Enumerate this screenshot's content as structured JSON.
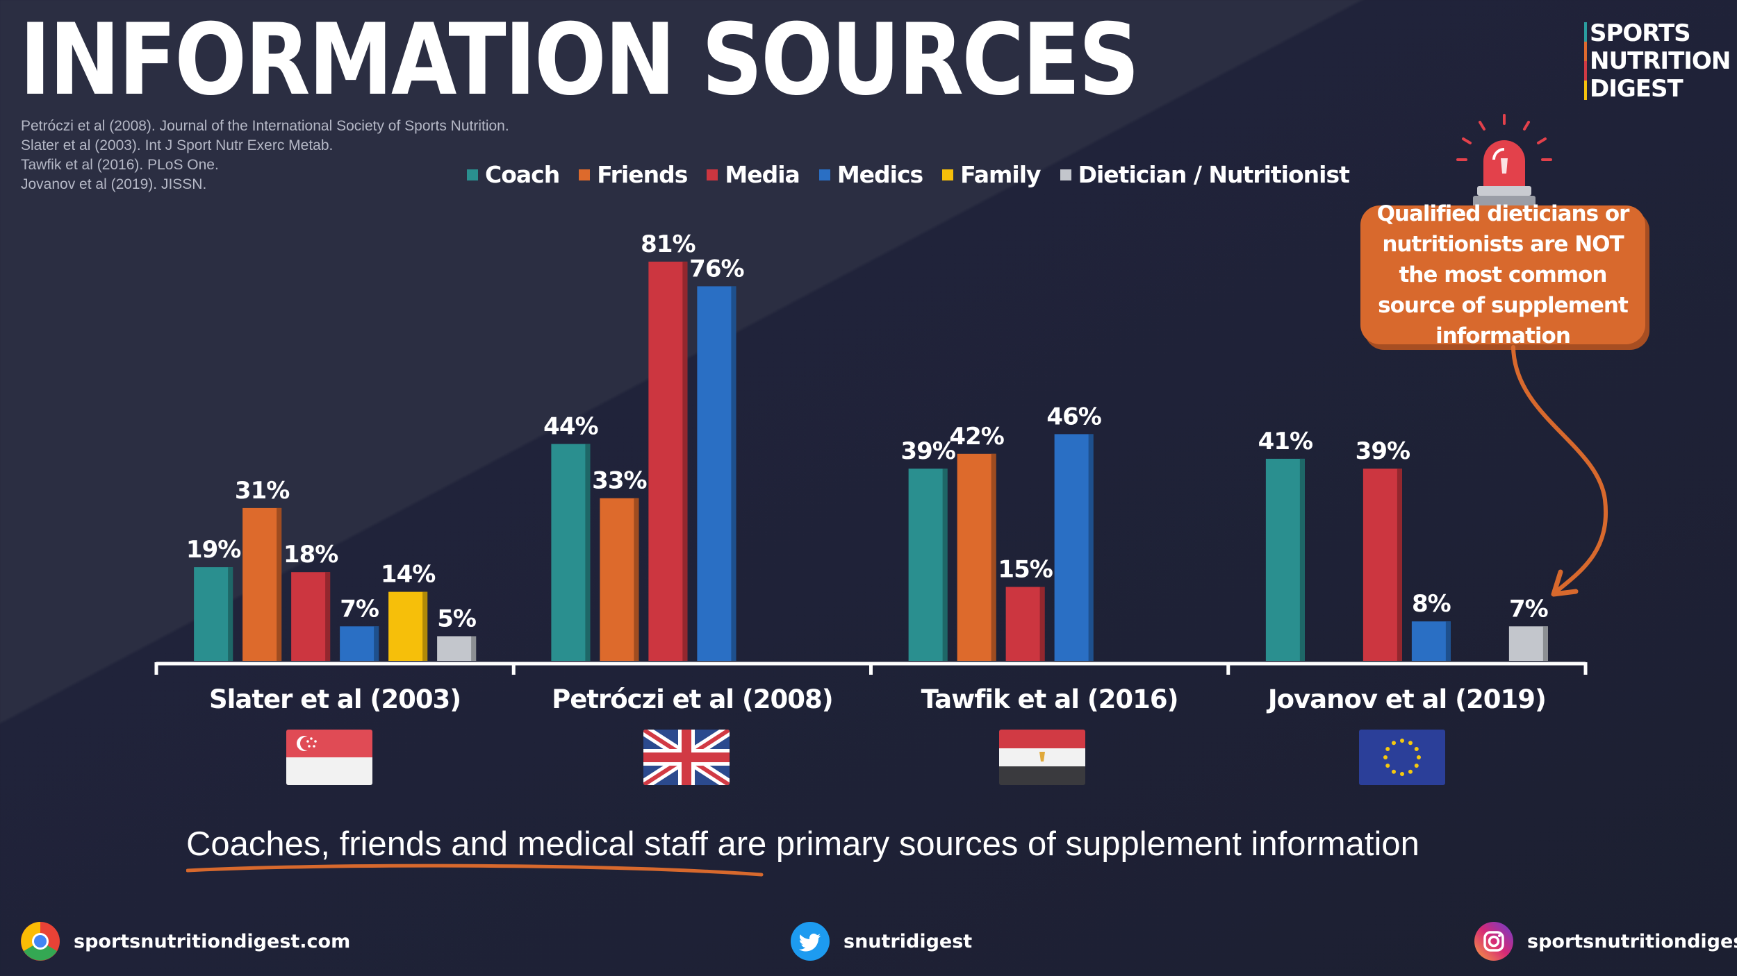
{
  "header": {
    "title": "INFORMATION SOURCES",
    "references": [
      "Petróczi et al (2008). Journal of the International Society of Sports Nutrition.",
      "Slater et al (2003). Int J Sport Nutr Exerc Metab.",
      "Tawfik et al (2016). PLoS One.",
      "Jovanov et al (2019). JISSN."
    ]
  },
  "brand": {
    "lines": [
      "SPORTS",
      "NUTRITION",
      "DIGEST"
    ]
  },
  "chart_data": {
    "type": "bar",
    "categories": [
      "Slater et al (2003)",
      "Petróczi et al (2008)",
      "Tawfik et al (2016)",
      "Jovanov et al (2019)"
    ],
    "series": [
      {
        "name": "Coach",
        "color": "#2a8f8f",
        "values": [
          19,
          44,
          39,
          41
        ]
      },
      {
        "name": "Friends",
        "color": "#dd6a2c",
        "values": [
          31,
          33,
          42,
          null
        ]
      },
      {
        "name": "Media",
        "color": "#cc3640",
        "values": [
          18,
          81,
          15,
          39
        ]
      },
      {
        "name": "Medics",
        "color": "#2a6fc4",
        "values": [
          7,
          76,
          46,
          8
        ]
      },
      {
        "name": "Family",
        "color": "#f6bf0a",
        "values": [
          14,
          null,
          null,
          null
        ]
      },
      {
        "name": "Dietician / Nutritionist",
        "color": "#c3c6cc",
        "values": [
          5,
          null,
          null,
          7
        ]
      }
    ],
    "value_suffix": "%",
    "ylim": [
      0,
      100
    ],
    "grid": false,
    "legend_position": "top-center",
    "flags": [
      "singapore-flag",
      "uk-flag",
      "egypt-flag",
      "eu-flag"
    ]
  },
  "callout": {
    "text": "Qualified dieticians or nutritionists are NOT the most common source of supplement information"
  },
  "subtitle": {
    "highlight": "Coaches, friends and medical staff",
    "rest": " are primary sources of supplement information"
  },
  "footer": {
    "website": "sportsnutritiondigest.com",
    "twitter": "snutridigest",
    "instagram": "sportsnutritiondigest"
  }
}
